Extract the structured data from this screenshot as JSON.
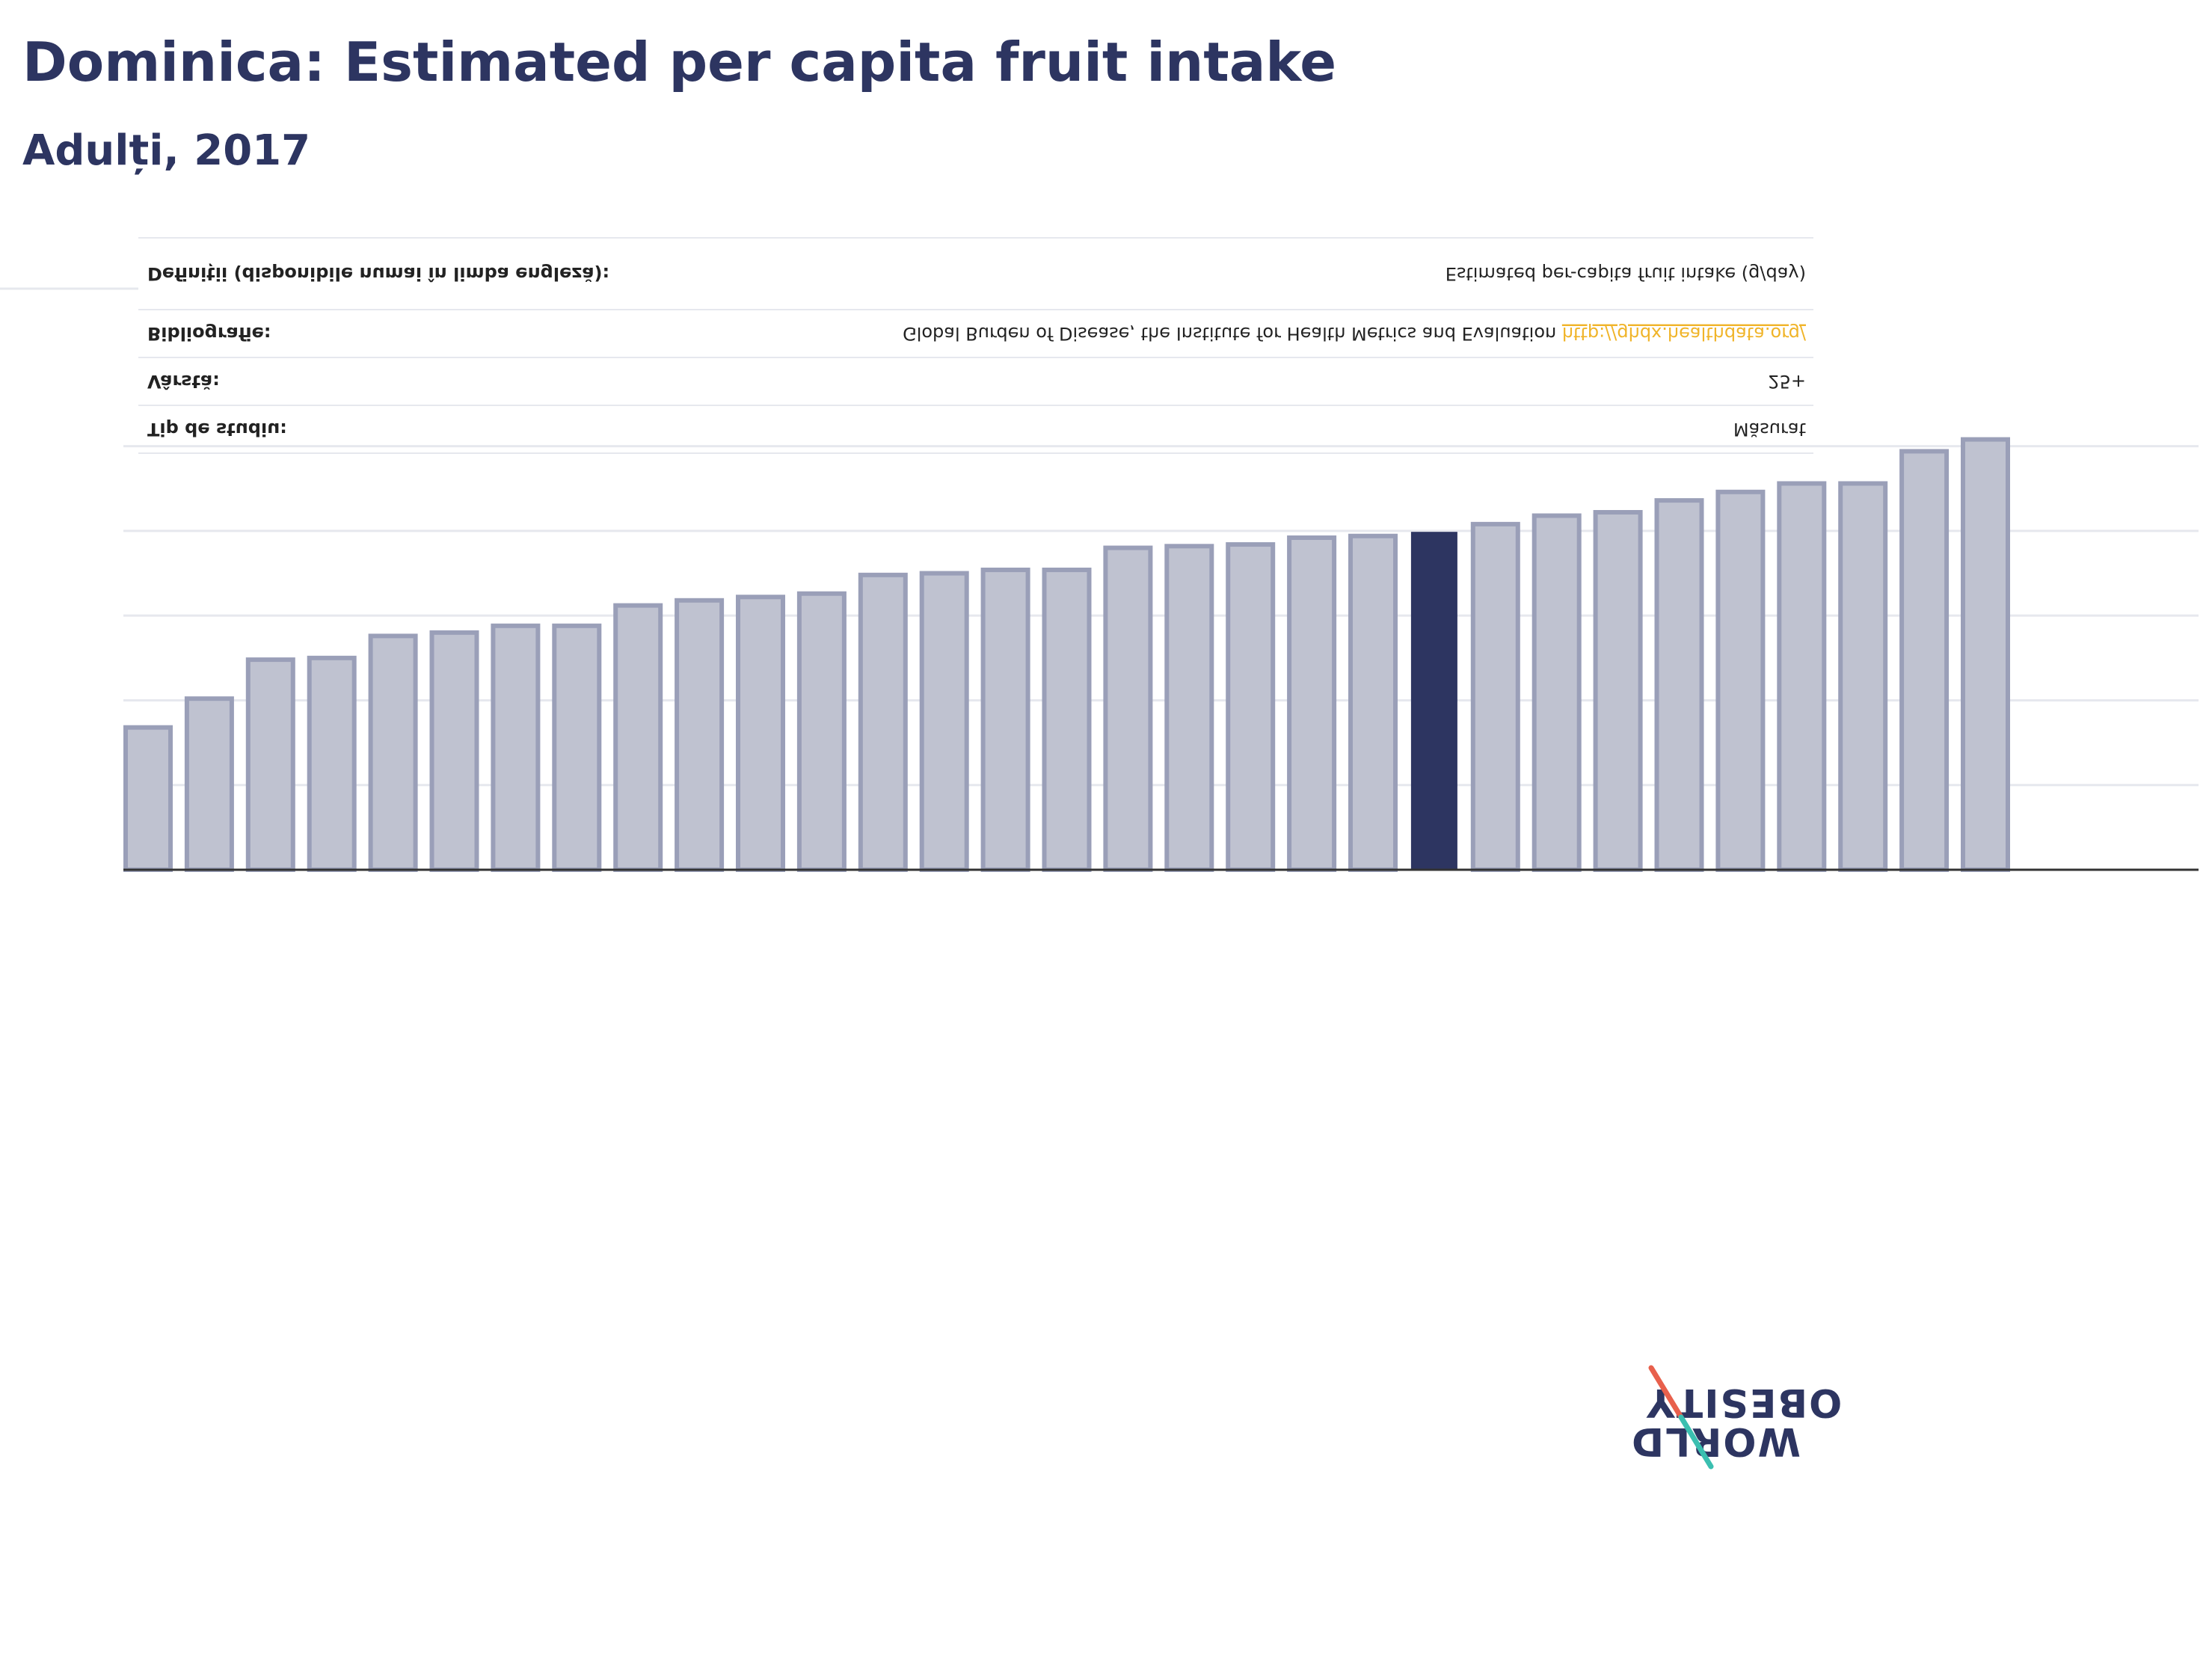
{
  "header": {
    "title": "Dominica: Estimated per capita fruit intake",
    "subtitle": "Adulți, 2017"
  },
  "info_table": {
    "rows": [
      {
        "label": "Definiții (disponibile numai în limba engleză):",
        "value": "Estimated per-capita fruit intake (g/day)",
        "link": ""
      },
      {
        "label": "Bibliografie:",
        "value": "Global Burden of Disease, the Institute for Health Metrics and Evaluation ",
        "link": "http://ghdx.healthdata.org/"
      },
      {
        "label": "Vârstă:",
        "value": "25+",
        "link": ""
      },
      {
        "label": "Tip de studiu:",
        "value": "Măsurat",
        "link": ""
      }
    ]
  },
  "logo": {
    "line1": "OBESITY",
    "line2": "WORLD"
  },
  "colors": {
    "title": "#2d3561",
    "bar": "#bfc2d0",
    "bar_border": "#9a9fb8",
    "highlight": "#2d3561",
    "link": "#f0b429",
    "grid": "#e6e8ee",
    "axis": "#333333",
    "logo_red": "#e8604c",
    "logo_teal": "#3bbfb0"
  },
  "chart_data": {
    "type": "bar",
    "title": "Dominica: Estimated per capita fruit intake",
    "subtitle": "Adulți, 2017",
    "xlabel": "",
    "ylabel": "",
    "ylim": [
      0,
      275
    ],
    "grid": true,
    "highlight_index": 21,
    "values": [
      84,
      101,
      124,
      125,
      138,
      140,
      144,
      144,
      156,
      159,
      161,
      163,
      174,
      175,
      177,
      177,
      190,
      191,
      192,
      196,
      197,
      199,
      204,
      209,
      211,
      218,
      223,
      228,
      228,
      247,
      254
    ]
  }
}
